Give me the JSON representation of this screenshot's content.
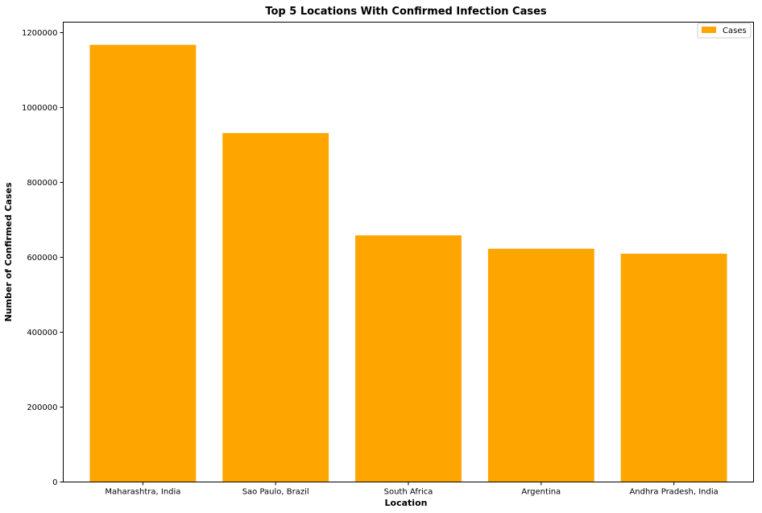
{
  "chart_data": {
    "type": "bar",
    "title": "Top 5 Locations With Confirmed Infection Cases",
    "xlabel": "Location",
    "ylabel": "Number of Confirmed Cases",
    "categories": [
      "Maharashtra, India",
      "Sao Paulo, Brazil",
      "South Africa",
      "Argentina",
      "Andhra Pradesh, India"
    ],
    "series": [
      {
        "name": "Cases",
        "values": [
          1167496,
          931673,
          658588,
          622934,
          609558
        ],
        "color": "#FFA500"
      }
    ],
    "ylim": [
      0,
      1228000
    ],
    "yticks": [
      0,
      200000,
      400000,
      600000,
      800000,
      1000000,
      1200000
    ],
    "ytick_labels": [
      "0",
      "200000",
      "400000",
      "600000",
      "800000",
      "1000000",
      "1200000"
    ],
    "grid": false,
    "legend_position": "top-right"
  }
}
